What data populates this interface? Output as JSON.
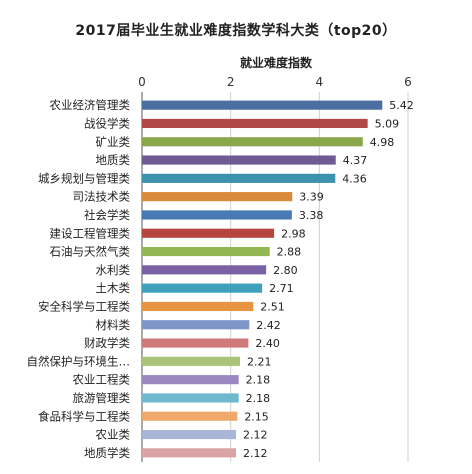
{
  "chart_data": {
    "type": "bar",
    "orientation": "horizontal",
    "title": "2017届毕业生就业难度指数学科大类（top20）",
    "axis_title": "就业难度指数",
    "xlim": [
      0,
      6
    ],
    "x_ticks": [
      "0",
      "2",
      "4",
      "6"
    ],
    "grid": true,
    "axis_position": "top",
    "categories": [
      "农业经济管理类",
      "战役学类",
      "矿业类",
      "地质类",
      "城乡规划与管理类",
      "司法技术类",
      "社会学类",
      "建设工程管理类",
      "石油与天然气类",
      "水利类",
      "土木类",
      "安全科学与工程类",
      "材料类",
      "财政学类",
      "自然保护与环境生…",
      "农业工程类",
      "旅游管理类",
      "食品科学与工程类",
      "农业类",
      "地质学类"
    ],
    "values": [
      5.42,
      5.09,
      4.98,
      4.37,
      4.36,
      3.39,
      3.38,
      2.98,
      2.88,
      2.8,
      2.71,
      2.51,
      2.42,
      2.4,
      2.21,
      2.18,
      2.18,
      2.15,
      2.12,
      2.12
    ],
    "value_labels": [
      "5.42",
      "5.09",
      "4.98",
      "4.37",
      "4.36",
      "3.39",
      "3.38",
      "2.98",
      "2.88",
      "2.80",
      "2.71",
      "2.51",
      "2.42",
      "2.40",
      "2.21",
      "2.18",
      "2.18",
      "2.15",
      "2.12",
      "2.12"
    ],
    "colors": [
      "#4a6fa0",
      "#b04848",
      "#8aa84a",
      "#6f5a94",
      "#3b93ad",
      "#d98a3a",
      "#4a7ab4",
      "#b5453e",
      "#93b552",
      "#7a62a4",
      "#3fa0bc",
      "#e89442",
      "#7c96c8",
      "#cf7a7a",
      "#a9c47a",
      "#9c88c0",
      "#6fb9cf",
      "#f0a96c",
      "#a9b6d8",
      "#d9a3a3"
    ]
  }
}
